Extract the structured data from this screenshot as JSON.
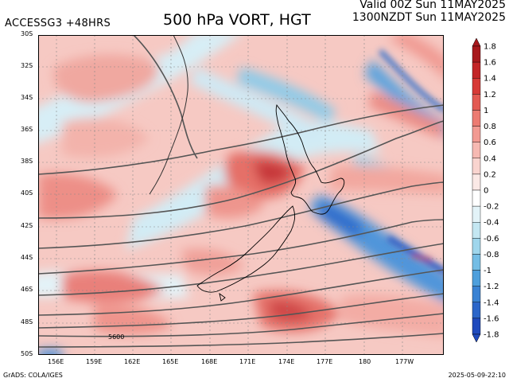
{
  "header": {
    "model_label": "ACCESSG3 +48HRS",
    "title": "500 hPa VORT, HGT",
    "valid_line1": "Valid 00Z Sun 11MAY2025",
    "valid_line2": "1300NZDT Sun 11MAY2025"
  },
  "map": {
    "lat_labels": [
      "30S",
      "32S",
      "34S",
      "36S",
      "38S",
      "40S",
      "42S",
      "44S",
      "46S",
      "48S",
      "50S"
    ],
    "lon_labels": [
      "156E",
      "159E",
      "162E",
      "165E",
      "168E",
      "171E",
      "174E",
      "177E",
      "180",
      "177W"
    ],
    "contour_label": "5600",
    "colors": {
      "positive": "#e8605f",
      "negative": "#3f86d8",
      "contour": "#555555",
      "coast": "#000000",
      "grid": "#777777"
    }
  },
  "colorbar": {
    "labels": [
      "1.8",
      "1.6",
      "1.4",
      "1.2",
      "1",
      "0.8",
      "0.6",
      "0.4",
      "0.2",
      "0",
      "-0.2",
      "-0.4",
      "-0.6",
      "-0.8",
      "-1",
      "-1.2",
      "-1.4",
      "-1.6",
      "-1.8"
    ],
    "colors": [
      "#a8191d",
      "#c32527",
      "#d73a36",
      "#e35a52",
      "#ec7b72",
      "#f29a92",
      "#f6b9b2",
      "#f9d4cf",
      "#fbe9e6",
      "#ffffff",
      "#e3f3f8",
      "#c4e7f2",
      "#9fd6ec",
      "#74bde5",
      "#4e9fdc",
      "#3a82d3",
      "#2c66c9",
      "#1f4abd"
    ]
  },
  "footer": {
    "source": "GrADS: COLA/IGES",
    "timestamp": "2025-05-09-22:10"
  }
}
